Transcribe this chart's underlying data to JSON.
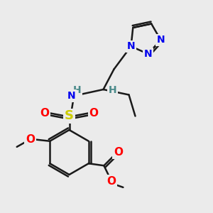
{
  "bg_color": "#ebebeb",
  "bond_color": "#1a1a1a",
  "bond_width": 1.8,
  "atom_colors": {
    "N": "#0000ee",
    "O": "#ff0000",
    "S": "#cccc00",
    "H": "#4a8a8a",
    "C": "#1a1a1a"
  },
  "figsize": [
    3.0,
    3.0
  ],
  "dpi": 100,
  "xlim": [
    0,
    10
  ],
  "ylim": [
    0,
    10
  ]
}
